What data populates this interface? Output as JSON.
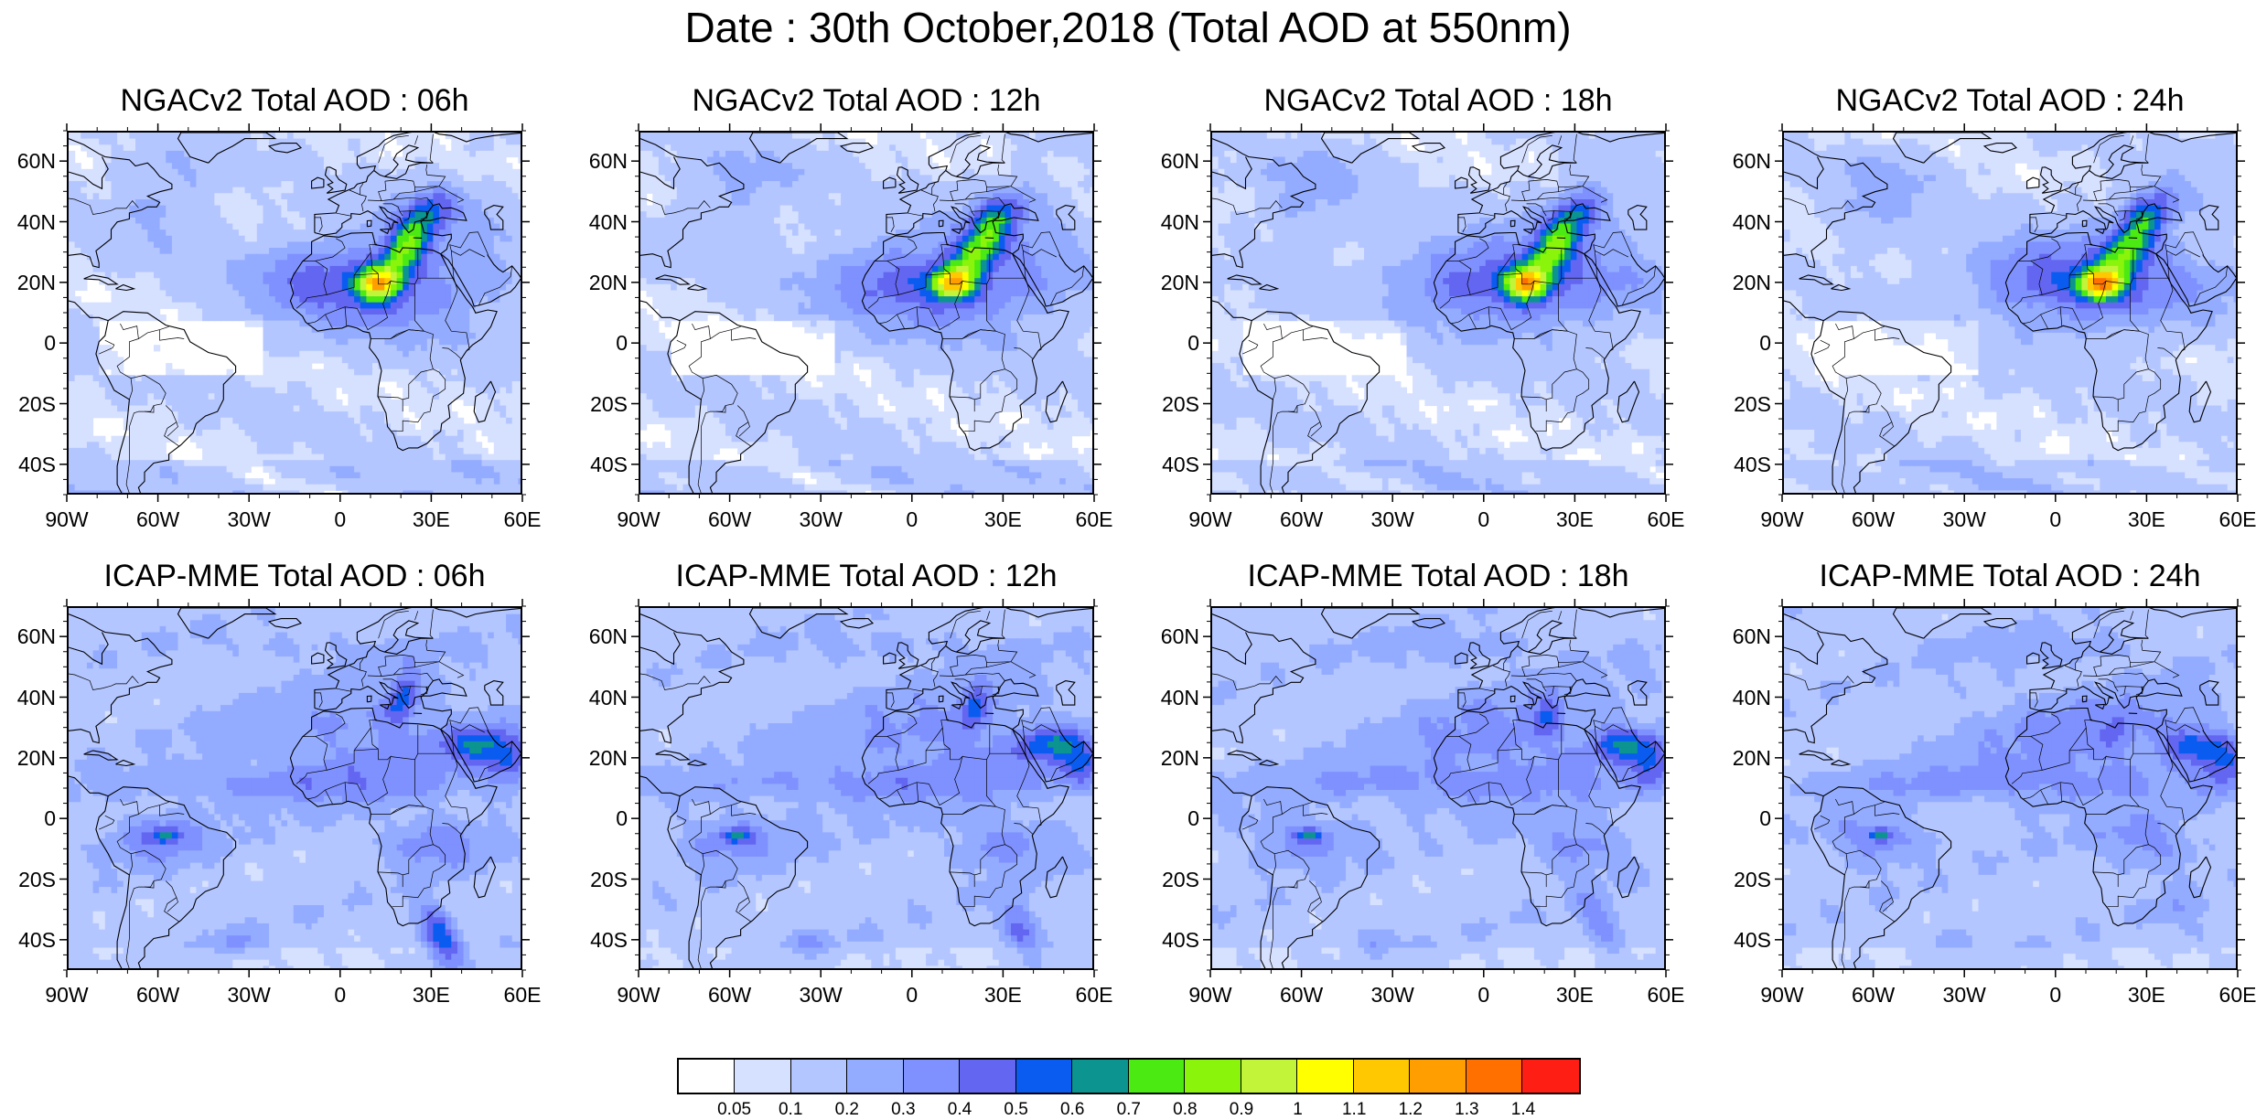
{
  "main_title": "Date : 30th October,2018 (Total AOD at 550nm)",
  "panels": [
    {
      "title": "NGACv2 Total AOD : 06h",
      "row": 0,
      "col": 0,
      "model": "NGACv2"
    },
    {
      "title": "NGACv2 Total AOD : 12h",
      "row": 0,
      "col": 1,
      "model": "NGACv2"
    },
    {
      "title": "NGACv2 Total AOD : 18h",
      "row": 0,
      "col": 2,
      "model": "NGACv2"
    },
    {
      "title": "NGACv2 Total AOD : 24h",
      "row": 0,
      "col": 3,
      "model": "NGACv2"
    },
    {
      "title": "ICAP-MME Total AOD : 06h",
      "row": 1,
      "col": 0,
      "model": "ICAP-MME"
    },
    {
      "title": "ICAP-MME Total AOD : 12h",
      "row": 1,
      "col": 1,
      "model": "ICAP-MME"
    },
    {
      "title": "ICAP-MME Total AOD : 18h",
      "row": 1,
      "col": 2,
      "model": "ICAP-MME"
    },
    {
      "title": "ICAP-MME Total AOD : 24h",
      "row": 1,
      "col": 3,
      "model": "ICAP-MME"
    }
  ],
  "lat_labels": [
    {
      "value": 60,
      "label": "60N"
    },
    {
      "value": 40,
      "label": "40N"
    },
    {
      "value": 20,
      "label": "20N"
    },
    {
      "value": 0,
      "label": "0"
    },
    {
      "value": -20,
      "label": "20S"
    },
    {
      "value": -40,
      "label": "40S"
    }
  ],
  "lon_labels": [
    {
      "value": -90,
      "label": "90W"
    },
    {
      "value": -60,
      "label": "60W"
    },
    {
      "value": -30,
      "label": "30W"
    },
    {
      "value": 0,
      "label": "0"
    },
    {
      "value": 30,
      "label": "30E"
    },
    {
      "value": 60,
      "label": "60E"
    }
  ],
  "extent": {
    "lon_min": -90,
    "lon_max": 60,
    "lat_min": -50,
    "lat_max": 70
  },
  "colorbar": {
    "colors": [
      "#ffffff",
      "#d6e0ff",
      "#b4c6ff",
      "#94acff",
      "#7f91ff",
      "#6366f0",
      "#0a5cf0",
      "#0b9490",
      "#4aea12",
      "#8af50a",
      "#c2f53a",
      "#ffff00",
      "#ffc800",
      "#ff9e00",
      "#ff7000",
      "#ff1e14"
    ],
    "labels": [
      "0.05",
      "0.1",
      "0.2",
      "0.3",
      "0.4",
      "0.5",
      "0.6",
      "0.7",
      "0.8",
      "0.9",
      "1",
      "1.1",
      "1.2",
      "1.3",
      "1.4"
    ]
  }
}
